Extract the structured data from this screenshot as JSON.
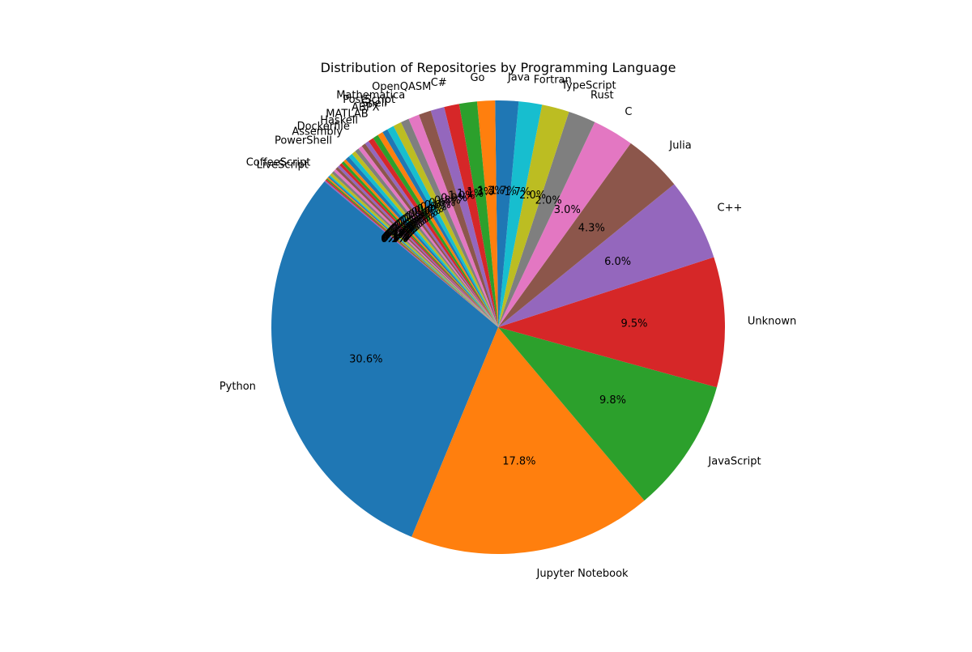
{
  "chart_data": {
    "type": "pie",
    "title": "Distribution of Repositories by Programming Language",
    "start_angle_deg": 140,
    "direction": "counterclockwise",
    "pct_decimals": 1,
    "slices": [
      {
        "label": "Python",
        "value": 30.6,
        "color": "#1f77b4"
      },
      {
        "label": "Jupyter Notebook",
        "value": 17.8,
        "color": "#ff7f0e"
      },
      {
        "label": "JavaScript",
        "value": 9.8,
        "color": "#2ca02c"
      },
      {
        "label": "Unknown",
        "value": 9.5,
        "color": "#d62728"
      },
      {
        "label": "C++",
        "value": 6.0,
        "color": "#9467bd"
      },
      {
        "label": "Julia",
        "value": 4.3,
        "color": "#8c564b"
      },
      {
        "label": "C",
        "value": 3.0,
        "color": "#e377c2"
      },
      {
        "label": "Rust",
        "value": 2.0,
        "color": "#7f7f7f"
      },
      {
        "label": "TypeScript",
        "value": 2.0,
        "color": "#bcbd22"
      },
      {
        "label": "Fortran",
        "value": 1.7,
        "color": "#17becf"
      },
      {
        "label": "Java",
        "value": 1.7,
        "color": "#1f77b4"
      },
      {
        "label": "Go",
        "value": 1.3,
        "color": "#ff7f0e"
      },
      {
        "label": "",
        "value": 1.3,
        "color": "#2ca02c"
      },
      {
        "label": "C#",
        "value": 1.1,
        "color": "#d62728"
      },
      {
        "label": "OpenQASM",
        "value": 1.0,
        "color": "#9467bd"
      },
      {
        "label": "",
        "value": 0.9,
        "color": "#8c564b"
      },
      {
        "label": "Mathematica",
        "value": 0.8,
        "color": "#e377c2"
      },
      {
        "label": "PostScript",
        "value": 0.6,
        "color": "#7f7f7f"
      },
      {
        "label": "Shell",
        "value": 0.6,
        "color": "#bcbd22"
      },
      {
        "label": "ABPX",
        "value": 0.5,
        "color": "#17becf"
      },
      {
        "label": "",
        "value": 0.4,
        "color": "#1f77b4"
      },
      {
        "label": "MATLAB",
        "value": 0.4,
        "color": "#ff7f0e"
      },
      {
        "label": "",
        "value": 0.4,
        "color": "#2ca02c"
      },
      {
        "label": "Haskell",
        "value": 0.4,
        "color": "#d62728"
      },
      {
        "label": "",
        "value": 0.3,
        "color": "#9467bd"
      },
      {
        "label": "Dockerfile",
        "value": 0.3,
        "color": "#8c564b"
      },
      {
        "label": "",
        "value": 0.3,
        "color": "#e377c2"
      },
      {
        "label": "Assembly",
        "value": 0.3,
        "color": "#7f7f7f"
      },
      {
        "label": "",
        "value": 0.3,
        "color": "#bcbd22"
      },
      {
        "label": "",
        "value": 0.3,
        "color": "#17becf"
      },
      {
        "label": "PowerShell",
        "value": 0.3,
        "color": "#1f77b4"
      },
      {
        "label": "",
        "value": 0.2,
        "color": "#ff7f0e"
      },
      {
        "label": "",
        "value": 0.2,
        "color": "#2ca02c"
      },
      {
        "label": "",
        "value": 0.2,
        "color": "#d62728"
      },
      {
        "label": "",
        "value": 0.2,
        "color": "#9467bd"
      },
      {
        "label": "",
        "value": 0.2,
        "color": "#8c564b"
      },
      {
        "label": "",
        "value": 0.2,
        "color": "#e377c2"
      },
      {
        "label": "",
        "value": 0.2,
        "color": "#7f7f7f"
      },
      {
        "label": "",
        "value": 0.2,
        "color": "#bcbd22"
      },
      {
        "label": "",
        "value": 0.1,
        "color": "#17becf"
      },
      {
        "label": "",
        "value": 0.1,
        "color": "#1f77b4"
      },
      {
        "label": "CoffeeScript",
        "value": 0.1,
        "color": "#ff7f0e"
      },
      {
        "label": "",
        "value": 0.1,
        "color": "#2ca02c"
      },
      {
        "label": "LiveScript",
        "value": 0.1,
        "color": "#d62728"
      },
      {
        "label": "",
        "value": 0.1,
        "color": "#9467bd"
      }
    ]
  }
}
